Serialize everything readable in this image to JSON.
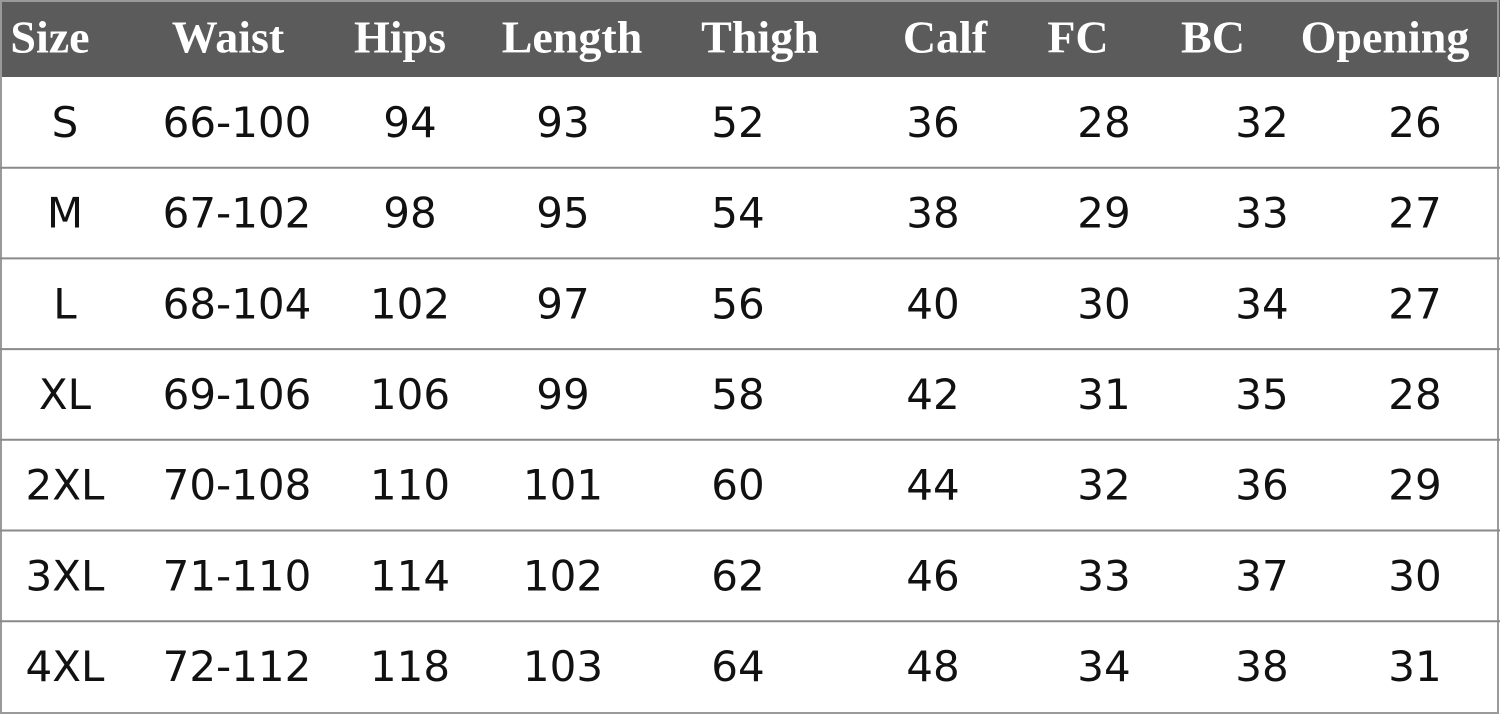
{
  "table": {
    "header": [
      "Size",
      "Waist",
      "Hips",
      "Length",
      "Thigh",
      "Calf",
      "FC",
      "BC",
      "Opening"
    ],
    "rows": [
      [
        "S",
        "66-100",
        94,
        93,
        52,
        36,
        28,
        32,
        26
      ],
      [
        "M",
        "67-102",
        98,
        95,
        54,
        38,
        29,
        33,
        27
      ],
      [
        "L",
        "68-104",
        102,
        97,
        56,
        40,
        30,
        34,
        27
      ],
      [
        "XL",
        "69-106",
        106,
        99,
        58,
        42,
        31,
        35,
        28
      ],
      [
        "2XL",
        "70-108",
        110,
        101,
        60,
        44,
        32,
        36,
        29
      ],
      [
        "3XL",
        "71-110",
        114,
        102,
        62,
        46,
        33,
        37,
        30
      ],
      [
        "4XL",
        "72-112",
        118,
        103,
        64,
        48,
        34,
        38,
        31
      ]
    ]
  }
}
